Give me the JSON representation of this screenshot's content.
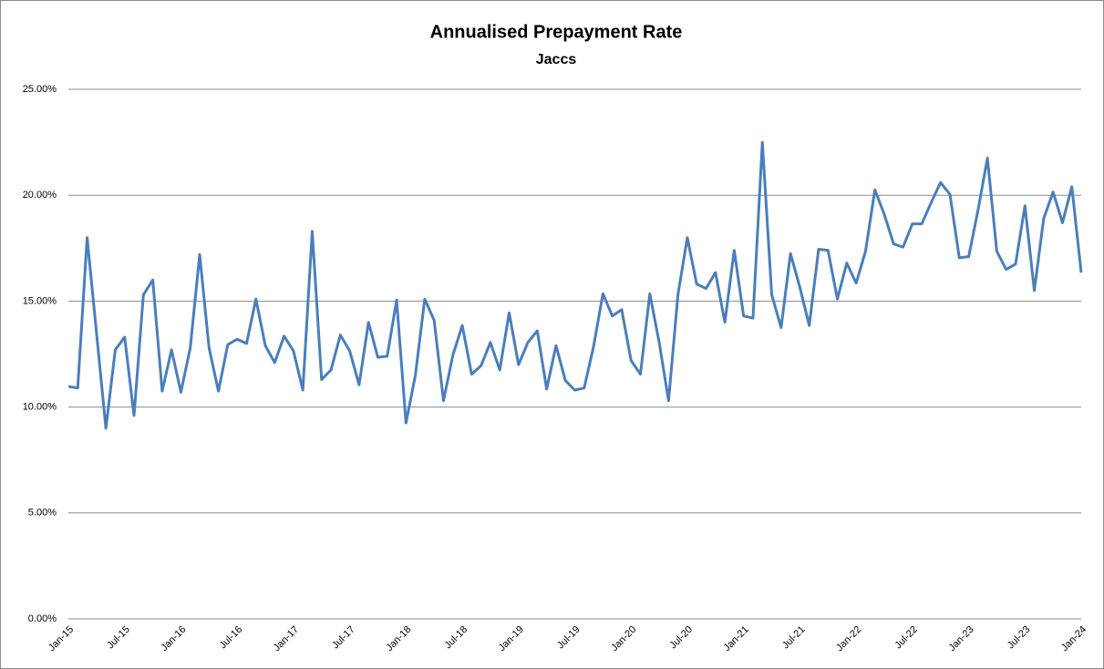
{
  "chart_data": {
    "type": "line",
    "title": "Annualised Prepayment Rate",
    "subtitle": "Jaccs",
    "categories": [
      "Jan-15",
      null,
      null,
      null,
      null,
      null,
      "Jul-15",
      null,
      null,
      null,
      null,
      null,
      "Jan-16",
      null,
      null,
      null,
      null,
      null,
      "Jul-16",
      null,
      null,
      null,
      null,
      null,
      "Jan-17",
      null,
      null,
      null,
      null,
      null,
      "Jul-17",
      null,
      null,
      null,
      null,
      null,
      "Jan-18",
      null,
      null,
      null,
      null,
      null,
      "Jul-18",
      null,
      null,
      null,
      null,
      null,
      "Jan-19",
      null,
      null,
      null,
      null,
      null,
      "Jul-19",
      null,
      null,
      null,
      null,
      null,
      "Jan-20",
      null,
      null,
      null,
      null,
      null,
      "Jul-20",
      null,
      null,
      null,
      null,
      null,
      "Jan-21",
      null,
      null,
      null,
      null,
      null,
      "Jul-21",
      null,
      null,
      null,
      null,
      null,
      "Jan-22",
      null,
      null,
      null,
      null,
      null,
      "Jul-22",
      null,
      null,
      null,
      null,
      null,
      "Jan-23",
      null,
      null,
      null,
      null,
      null,
      "Jul-23",
      null,
      null,
      null,
      null,
      null,
      "Jan-24"
    ],
    "series": [
      {
        "color": "#4a7ebb",
        "values": [
          10.97,
          10.9,
          18.0,
          13.5,
          9.0,
          12.7,
          13.3,
          9.6,
          15.3,
          16.0,
          10.75,
          12.7,
          10.7,
          12.8,
          17.2,
          12.8,
          10.75,
          12.95,
          13.2,
          13.0,
          15.1,
          12.9,
          12.1,
          13.35,
          12.65,
          10.8,
          18.3,
          11.3,
          11.75,
          13.4,
          12.65,
          11.05,
          14.0,
          12.35,
          12.4,
          15.05,
          9.25,
          11.5,
          15.1,
          14.1,
          10.3,
          12.45,
          13.85,
          11.55,
          11.95,
          13.05,
          11.75,
          14.45,
          12.0,
          13.05,
          13.6,
          10.85,
          12.9,
          11.25,
          10.8,
          10.9,
          12.85,
          15.35,
          14.3,
          14.6,
          12.2,
          11.55,
          15.35,
          13.05,
          10.3,
          15.3,
          18.0,
          15.8,
          15.6,
          16.35,
          14.0,
          17.4,
          14.3,
          14.2,
          22.5,
          15.3,
          13.75,
          17.25,
          15.65,
          13.85,
          17.45,
          17.4,
          15.1,
          16.8,
          15.85,
          17.35,
          20.25,
          19.1,
          17.7,
          17.55,
          18.65,
          18.65,
          19.65,
          20.6,
          20.05,
          17.05,
          17.1,
          19.3,
          21.75,
          17.35,
          16.5,
          16.75,
          19.5,
          15.5,
          18.9,
          20.15,
          18.7,
          20.4,
          16.35
        ]
      }
    ],
    "ylim": [
      0,
      25
    ],
    "yticks": [
      {
        "value": 0,
        "label": "0.00%"
      },
      {
        "value": 5,
        "label": "5.00%"
      },
      {
        "value": 10,
        "label": "10.00%"
      },
      {
        "value": 15,
        "label": "15.00%"
      },
      {
        "value": 20,
        "label": "20.00%"
      },
      {
        "value": 25,
        "label": "25.00%"
      }
    ],
    "grid": true
  }
}
